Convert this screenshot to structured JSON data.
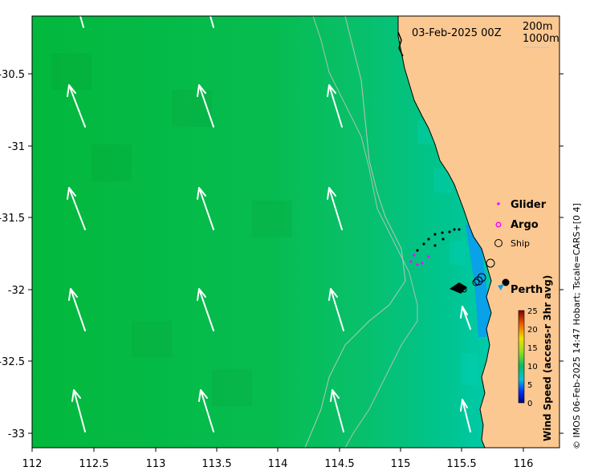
{
  "map": {
    "timestamp": "03-Feb-2025 00Z",
    "contour_labels": [
      "200m",
      "1000m"
    ],
    "x_ticks": [
      "112",
      "112.5",
      "113",
      "113.5",
      "114",
      "114.5",
      "115",
      "115.5",
      "116"
    ],
    "y_ticks": [
      "-30.5",
      "-31",
      "-31.5",
      "-32",
      "-32.5",
      "-33"
    ],
    "legend": {
      "glider": "Glider",
      "argo": "Argo",
      "ship": "Ship"
    },
    "place_label": "Perth",
    "colorbar": {
      "title": "Wind Speed (access-r 3hr avg)",
      "ticks": [
        "25",
        "20",
        "15",
        "10",
        "5",
        "0"
      ]
    },
    "credit": "© IMOS 06-Feb-2025 14:47 Hobart; Tscale=CARS+[0 4]",
    "colors": {
      "land": "#fbc892",
      "wind_high": "#00b838",
      "wind_low": "#00d3d0",
      "arrow": "#ffffff",
      "glider": "#ff00ff",
      "argo": "#ff00ff"
    }
  }
}
